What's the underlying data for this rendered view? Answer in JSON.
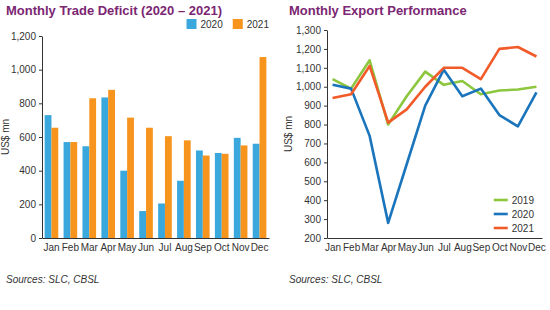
{
  "chart_data": [
    {
      "type": "bar",
      "title": "Monthly Trade Deficit (2020 – 2021)",
      "y_label": "US$ mn",
      "source": "Sources: SLC, CBSL",
      "categories": [
        "Jan",
        "Feb",
        "Mar",
        "Apr",
        "May",
        "Jun",
        "Jul",
        "Aug",
        "Sep",
        "Oct",
        "Nov",
        "Dec"
      ],
      "series": [
        {
          "name": "2020",
          "color": "#3aa8dc",
          "values": [
            730,
            570,
            545,
            835,
            400,
            160,
            205,
            340,
            520,
            505,
            595,
            560
          ]
        },
        {
          "name": "2021",
          "color": "#f7941d",
          "values": [
            655,
            570,
            830,
            880,
            715,
            655,
            605,
            580,
            490,
            500,
            550,
            1075
          ]
        }
      ],
      "ylim": [
        0,
        1200
      ],
      "yticks": [
        0,
        200,
        400,
        600,
        800,
        {
          "value": 1000,
          "label": "1,000"
        },
        {
          "value": 1200,
          "label": "1,200"
        }
      ],
      "grid": false,
      "legend": "top-right"
    },
    {
      "type": "line",
      "title": "Monthly Export Performance",
      "y_label": "US$ mn",
      "source": "Sources: SLC, CBSL",
      "categories": [
        "Jan",
        "Feb",
        "Mar",
        "Apr",
        "May",
        "Jun",
        "Jul",
        "Aug",
        "Sep",
        "Oct",
        "Nov",
        "Dec"
      ],
      "series": [
        {
          "name": "2019",
          "color": "#8dc63f",
          "values": [
            1040,
            990,
            1140,
            800,
            950,
            1080,
            1010,
            1030,
            960,
            980,
            985,
            1000
          ]
        },
        {
          "name": "2020",
          "color": "#1b75bc",
          "values": [
            1010,
            990,
            740,
            280,
            590,
            900,
            1090,
            950,
            990,
            850,
            790,
            970
          ]
        },
        {
          "name": "2021",
          "color": "#f15a29",
          "values": [
            940,
            960,
            1110,
            810,
            880,
            1000,
            1100,
            1100,
            1040,
            1200,
            1210,
            1160
          ]
        }
      ],
      "ylim": [
        200,
        1300
      ],
      "yticks": [
        200,
        300,
        400,
        500,
        600,
        700,
        800,
        900,
        {
          "value": 1000,
          "label": "1,000"
        },
        {
          "value": 1100,
          "label": "1,100"
        },
        {
          "value": 1200,
          "label": "1,200"
        },
        {
          "value": 1300,
          "label": "1,300"
        }
      ],
      "grid": false,
      "legend": "bottom-right"
    }
  ]
}
